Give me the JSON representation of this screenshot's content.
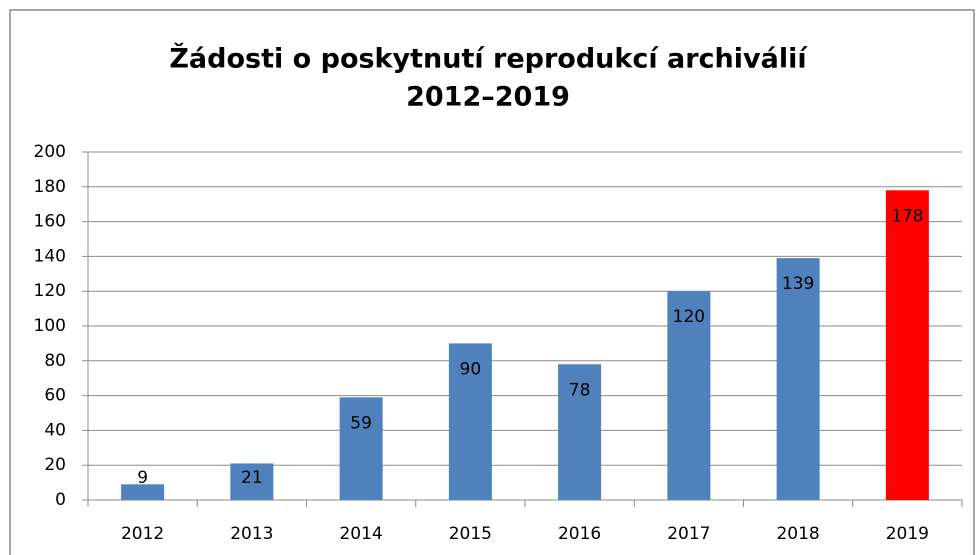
{
  "chart_data": {
    "type": "bar",
    "title": [
      "Žádosti o poskytnutí reprodukcí archiválií",
      "2012–2019"
    ],
    "categories": [
      "2012",
      "2013",
      "2014",
      "2015",
      "2016",
      "2017",
      "2018",
      "2019"
    ],
    "values": [
      9,
      21,
      59,
      90,
      78,
      120,
      139,
      178
    ],
    "colors": [
      "#4f81bd",
      "#4f81bd",
      "#4f81bd",
      "#4f81bd",
      "#4f81bd",
      "#4f81bd",
      "#4f81bd",
      "#ff0000"
    ],
    "ylim": [
      0,
      200
    ],
    "yticks": [
      0,
      20,
      40,
      60,
      80,
      100,
      120,
      140,
      160,
      180,
      200
    ],
    "grid": true
  }
}
